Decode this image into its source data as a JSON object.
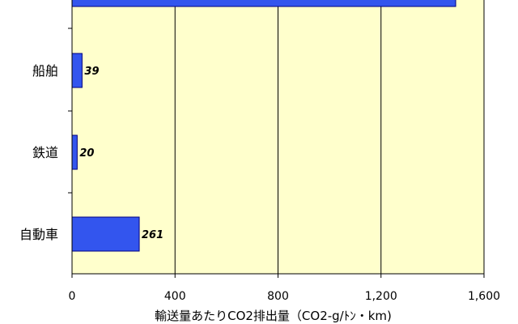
{
  "chart_data": {
    "type": "bar",
    "orientation": "horizontal",
    "categories": [
      "船舶",
      "鉄道",
      "自動車"
    ],
    "values": [
      39,
      20,
      261
    ],
    "value_labels": [
      "39",
      "20",
      "261"
    ],
    "partially_visible_bar": {
      "value": 1490
    },
    "xlim": [
      0,
      1600
    ],
    "xticks": [
      0,
      400,
      800,
      1200,
      1600
    ],
    "xtick_labels": [
      "0",
      "400",
      "800",
      "1,200",
      "1,600"
    ],
    "xlabel": "輸送量あたりCO2排出量（CO2-g/ﾄﾝ・km)",
    "grid": "vertical",
    "colors": {
      "plot_background": "#ffffcc",
      "bar_fill": "#3355ee",
      "bar_stroke": "#000080",
      "axis": "#000000",
      "grid": "#000000"
    }
  }
}
